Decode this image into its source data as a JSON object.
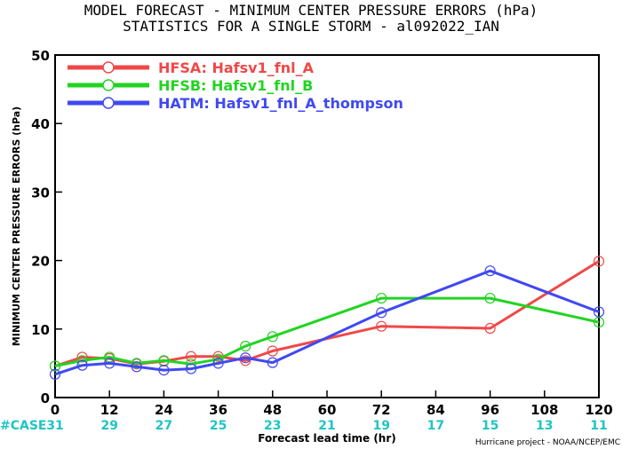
{
  "chart_data": {
    "type": "line",
    "title": "MODEL FORECAST - MINIMUM CENTER PRESSURE ERRORS (hPa)",
    "subtitle": "STATISTICS FOR A SINGLE STORM - al092022_IAN",
    "xlabel": "Forecast lead time (hr)",
    "ylabel": "MINIMUM CENTER PRESSURE ERRORS (hPa)",
    "xlim": [
      0,
      120
    ],
    "ylim": [
      0,
      50
    ],
    "xticks": [
      0,
      12,
      24,
      36,
      48,
      60,
      72,
      84,
      96,
      108,
      120
    ],
    "yticks": [
      0,
      10,
      20,
      30,
      40,
      50
    ],
    "grid": false,
    "legend": "top-left",
    "series": [
      {
        "name": "HFSA: Hafsv1_fnl_A",
        "color": "#f04848",
        "x": [
          0,
          6,
          12,
          18,
          24,
          30,
          36,
          42,
          48,
          72,
          96,
          120
        ],
        "y": [
          4.6,
          5.9,
          5.7,
          4.9,
          5.3,
          6.0,
          6.0,
          5.4,
          6.8,
          10.4,
          10.1,
          19.9
        ]
      },
      {
        "name": "HFSB: Hafsv1_fnl_B",
        "color": "#22d422",
        "x": [
          0,
          6,
          12,
          18,
          24,
          30,
          36,
          42,
          48,
          72,
          96,
          120
        ],
        "y": [
          4.6,
          5.4,
          5.9,
          5.0,
          5.4,
          4.9,
          5.6,
          7.5,
          8.9,
          14.5,
          14.5,
          11.0
        ]
      },
      {
        "name": "HATM: Hafsv1_fnl_A_thompson",
        "color": "#3f49f2",
        "x": [
          0,
          6,
          12,
          18,
          24,
          30,
          36,
          42,
          48,
          72,
          96,
          120
        ],
        "y": [
          3.4,
          4.7,
          5.0,
          4.5,
          4.0,
          4.2,
          5.0,
          5.8,
          5.1,
          12.4,
          18.5,
          12.5
        ]
      }
    ],
    "cases": {
      "label": "#CASE",
      "x": [
        0,
        12,
        24,
        36,
        48,
        60,
        72,
        84,
        96,
        108,
        120
      ],
      "values": [
        "31",
        "29",
        "27",
        "25",
        "23",
        "21",
        "19",
        "17",
        "15",
        "13",
        "11"
      ],
      "color": "#20c4c4"
    },
    "credit": "Hurricane project - NOAA/NCEP/EMC"
  }
}
